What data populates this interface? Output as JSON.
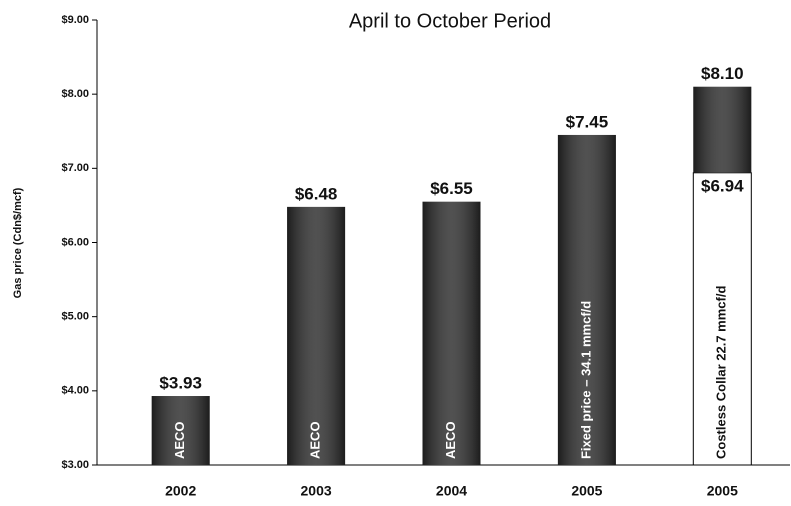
{
  "chart_data": {
    "type": "bar",
    "title": "April to October Period",
    "y_label": "Gas price (Cdn$/mcf)",
    "categories": [
      "2002",
      "2003",
      "2004",
      "2005",
      "2005"
    ],
    "values": [
      3.93,
      6.48,
      6.55,
      7.45,
      8.1
    ],
    "value_labels": [
      "$3.93",
      "$6.48",
      "$6.55",
      "$7.45",
      "$8.10"
    ],
    "floor_values": [
      null,
      null,
      null,
      null,
      6.94
    ],
    "floor_labels": [
      null,
      null,
      null,
      null,
      "$6.94"
    ],
    "bar_labels": [
      "AECO",
      "AECO",
      "AECO",
      "Fixed price – 34.1 mmcf/d",
      "Costless Collar 22.7 mmcf/d"
    ],
    "color": "#2b2b2b",
    "floor_color": "#ffffff",
    "ylim": [
      3,
      9
    ],
    "yticks": [
      {
        "value": 3,
        "label": "$3.00"
      },
      {
        "value": 4,
        "label": "$4.00"
      },
      {
        "value": 5,
        "label": "$5.00"
      },
      {
        "value": 6,
        "label": "$6.00"
      },
      {
        "value": 7,
        "label": "$7.00"
      },
      {
        "value": 8,
        "label": "$8.00"
      },
      {
        "value": 9,
        "label": "$9.00"
      }
    ],
    "grid": false
  }
}
